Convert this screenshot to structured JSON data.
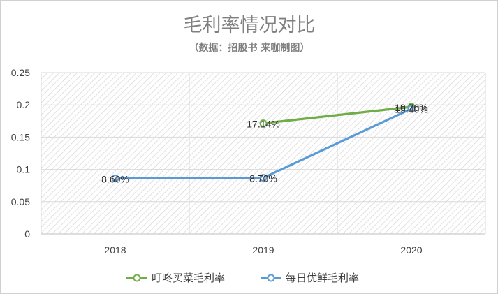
{
  "chart_data": {
    "type": "line",
    "title": "毛利率情况对比",
    "subtitle": "（数据：招股书 来咖制图）",
    "categories": [
      "2018",
      "2019",
      "2020"
    ],
    "y_ticks": [
      "0",
      "0.05",
      "0.1",
      "0.15",
      "0.2",
      "0.25"
    ],
    "ylim": [
      0,
      0.25
    ],
    "grid": true,
    "legend_position": "bottom",
    "series": [
      {
        "name": "叮咚买菜毛利率",
        "color": "#70ad47",
        "values": [
          null,
          0.1714,
          0.197
        ],
        "labels": [
          null,
          "17.14%",
          "19.70%"
        ]
      },
      {
        "name": "每日优鲜毛利率",
        "color": "#5b9bd5",
        "values": [
          0.086,
          0.087,
          0.194
        ],
        "labels": [
          "8.60%",
          "8.70%",
          "19.40%"
        ]
      }
    ]
  }
}
